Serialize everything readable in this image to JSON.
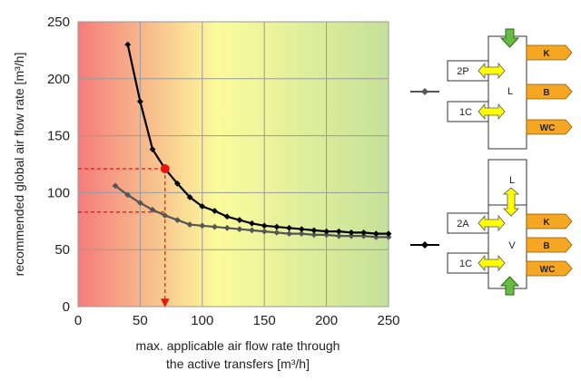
{
  "chart_data": {
    "type": "line",
    "title": "",
    "xlabel_line1": "max. applicable air flow rate through",
    "xlabel_line2": "the active transfers [m³/h]",
    "ylabel": "recommended global air flow rate [m³/h]",
    "xlim": [
      0,
      250
    ],
    "ylim": [
      0,
      250
    ],
    "xticks": [
      0,
      50,
      100,
      150,
      200,
      250
    ],
    "yticks": [
      0,
      50,
      100,
      150,
      200,
      250
    ],
    "grid": true,
    "background_gradient": [
      "#f47c7c",
      "#fbfb9c",
      "#c5e19a"
    ],
    "series": [
      {
        "key": "dark",
        "color": "#000000",
        "values": [
          [
            40,
            230
          ],
          [
            50,
            180
          ],
          [
            60,
            138
          ],
          [
            70,
            121
          ],
          [
            80,
            108
          ],
          [
            90,
            96
          ],
          [
            100,
            88
          ],
          [
            110,
            84
          ],
          [
            120,
            79
          ],
          [
            130,
            76
          ],
          [
            140,
            73
          ],
          [
            150,
            71
          ],
          [
            160,
            70
          ],
          [
            170,
            69
          ],
          [
            180,
            68
          ],
          [
            190,
            67
          ],
          [
            200,
            66
          ],
          [
            210,
            66
          ],
          [
            220,
            65
          ],
          [
            230,
            65
          ],
          [
            240,
            64
          ],
          [
            250,
            64
          ]
        ]
      },
      {
        "key": "gray",
        "color": "#555555",
        "values": [
          [
            30,
            106
          ],
          [
            40,
            98
          ],
          [
            50,
            91
          ],
          [
            60,
            85
          ],
          [
            70,
            80
          ],
          [
            80,
            76
          ],
          [
            90,
            72
          ],
          [
            100,
            71
          ],
          [
            110,
            70
          ],
          [
            120,
            69
          ],
          [
            130,
            68
          ],
          [
            140,
            67
          ],
          [
            150,
            66
          ],
          [
            160,
            65
          ],
          [
            170,
            64
          ],
          [
            180,
            64
          ],
          [
            190,
            63
          ],
          [
            200,
            63
          ],
          [
            210,
            62
          ],
          [
            220,
            62
          ],
          [
            230,
            62
          ],
          [
            240,
            61
          ],
          [
            250,
            61
          ]
        ]
      }
    ],
    "highlight_point": [
      70,
      121
    ],
    "highlight_color": "#ee1111",
    "guide_lines": [
      {
        "from": [
          0,
          121
        ],
        "to": [
          70,
          121
        ]
      },
      {
        "from": [
          0,
          83
        ],
        "to": [
          70,
          83
        ]
      },
      {
        "from": [
          70,
          121
        ],
        "to": [
          70,
          0
        ]
      }
    ]
  },
  "diagram": {
    "top": {
      "room": "L",
      "left_boxes": [
        "2P",
        "1C"
      ],
      "right_boxes": [
        "K",
        "B",
        "WC"
      ]
    },
    "bottom": {
      "upper_room": "L",
      "room": "V",
      "left_boxes": [
        "2A",
        "1C"
      ],
      "right_boxes": [
        "K",
        "B",
        "WC"
      ]
    },
    "colors": {
      "arrow_yellow": "#ffff00",
      "arrow_green": "#66bb44",
      "tag_orange": "#f5a623"
    }
  }
}
